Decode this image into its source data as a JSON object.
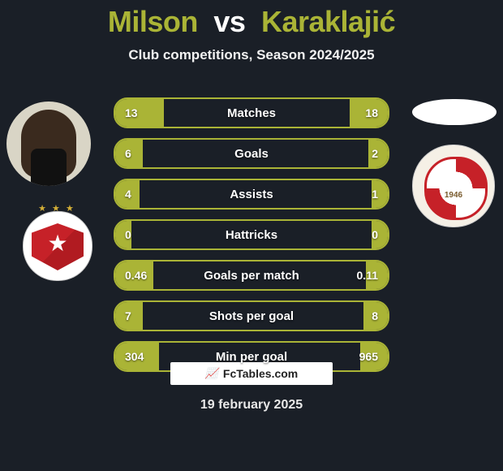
{
  "title": {
    "player1": "Milson",
    "vs": "vs",
    "player2": "Karaklajić"
  },
  "subtitle": "Club competitions, Season 2024/2025",
  "accent_color": "#aab436",
  "bg_color": "#1a1f27",
  "text_color": "#ffffff",
  "rows": [
    {
      "label": "Matches",
      "left": "13",
      "right": "18",
      "fillL_pct": 18,
      "fillR_pct": 14
    },
    {
      "label": "Goals",
      "left": "6",
      "right": "2",
      "fillL_pct": 10,
      "fillR_pct": 7
    },
    {
      "label": "Assists",
      "left": "4",
      "right": "1",
      "fillL_pct": 9,
      "fillR_pct": 6
    },
    {
      "label": "Hattricks",
      "left": "0",
      "right": "0",
      "fillL_pct": 6,
      "fillR_pct": 6
    },
    {
      "label": "Goals per match",
      "left": "0.46",
      "right": "0.11",
      "fillL_pct": 14,
      "fillR_pct": 8
    },
    {
      "label": "Shots per goal",
      "left": "7",
      "right": "8",
      "fillL_pct": 10,
      "fillR_pct": 9
    },
    {
      "label": "Min per goal",
      "left": "304",
      "right": "965",
      "fillL_pct": 16,
      "fillR_pct": 10
    }
  ],
  "footer_brand": "FcTables.com",
  "date": "19 february 2025",
  "player1_photo_name": "player1-photo",
  "player1_club_name": "crvena-zvezda-crest",
  "player2_photo_name": "player2-photo-placeholder",
  "player2_club_name": "napredak-crest"
}
